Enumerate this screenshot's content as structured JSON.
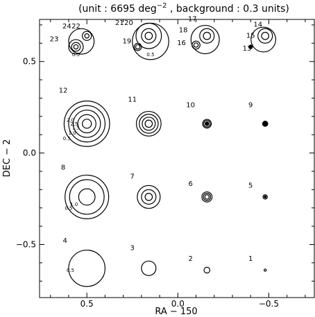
{
  "chart_data": {
    "type": "contour",
    "title": "(unit :  6695 deg⁻² , background : 0.3 units)",
    "title_parts": {
      "prefix": "(unit :  6695 deg",
      "superscript": "−2",
      "suffix": " , background : 0.3 units)"
    },
    "xlabel": "RA − 150",
    "ylabel": "DEC − 2",
    "xlim": [
      0.76,
      -0.75
    ],
    "ylim": [
      -0.79,
      0.73
    ],
    "x_ticks": [
      0.5,
      0.0,
      -0.5
    ],
    "x_tick_labels": [
      "0.5",
      "0.0",
      "−0.5"
    ],
    "y_ticks": [
      0.5,
      0.0,
      -0.5
    ],
    "y_tick_labels": [
      "0.5",
      "0.0",
      "−0.5"
    ],
    "grid": false,
    "legend": "none",
    "contour_sources": [
      {
        "id": "1",
        "x": -0.48,
        "y": -0.64,
        "radii": [
          0.006
        ]
      },
      {
        "id": "2",
        "x": -0.16,
        "y": -0.64,
        "radii": [
          0.016
        ]
      },
      {
        "id": "3",
        "x": 0.16,
        "y": -0.63,
        "radii": [
          0.04
        ]
      },
      {
        "id": "4",
        "x": 0.5,
        "y": -0.63,
        "radii": [
          0.1
        ]
      },
      {
        "id": "5",
        "x": -0.48,
        "y": -0.24,
        "radii": [
          0.012
        ]
      },
      {
        "id": "6",
        "x": -0.16,
        "y": -0.24,
        "radii": [
          0.012,
          0.02,
          0.028
        ]
      },
      {
        "id": "7",
        "x": 0.16,
        "y": -0.24,
        "radii": [
          0.02,
          0.04,
          0.063
        ]
      },
      {
        "id": "8",
        "x": 0.5,
        "y": -0.24,
        "radii": [
          0.045,
          0.095,
          0.12
        ]
      },
      {
        "id": "9",
        "x": -0.48,
        "y": 0.16,
        "radii": [
          0.014
        ]
      },
      {
        "id": "10",
        "x": -0.16,
        "y": 0.16,
        "radii": [
          0.01,
          0.018,
          0.024
        ]
      },
      {
        "id": "11",
        "x": 0.16,
        "y": 0.16,
        "radii": [
          0.02,
          0.036,
          0.052,
          0.068
        ]
      },
      {
        "id": "12",
        "x": 0.5,
        "y": 0.16,
        "radii": [
          0.025,
          0.05,
          0.075,
          0.1,
          0.125
        ]
      },
      {
        "id": "13",
        "x": -0.4,
        "y": 0.58,
        "radii": [
          0.008
        ]
      },
      {
        "id": "14",
        "x": -0.48,
        "y": 0.64,
        "radii": [
          0.02,
          0.04
        ]
      },
      {
        "id": "15",
        "x": -0.47,
        "y": 0.62,
        "radii": [
          0.068
        ]
      },
      {
        "id": "16",
        "x": -0.1,
        "y": 0.59,
        "radii": [
          0.012,
          0.022
        ]
      },
      {
        "id": "17",
        "x": -0.16,
        "y": 0.64,
        "radii": [
          0.02,
          0.04
        ]
      },
      {
        "id": "18",
        "x": -0.15,
        "y": 0.62,
        "radii": [
          0.078
        ]
      },
      {
        "id": "19",
        "x": 0.22,
        "y": 0.58,
        "radii": [
          0.012,
          0.02
        ]
      },
      {
        "id": "20",
        "x": 0.16,
        "y": 0.64,
        "radii": [
          0.02,
          0.04,
          0.07
        ]
      },
      {
        "id": "21",
        "x": 0.15,
        "y": 0.61,
        "radii": [
          0.1
        ]
      },
      {
        "id": "22",
        "x": 0.5,
        "y": 0.64,
        "radii": [
          0.012,
          0.025
        ]
      },
      {
        "id": "23",
        "x": 0.56,
        "y": 0.58,
        "radii": [
          0.012,
          0.024,
          0.04
        ]
      },
      {
        "id": "24",
        "x": 0.53,
        "y": 0.61,
        "radii": [
          0.07
        ]
      }
    ],
    "filled_sources": [
      {
        "id": "9",
        "x": -0.48,
        "y": 0.16,
        "r": 0.016
      },
      {
        "id": "10",
        "x": -0.16,
        "y": 0.16,
        "r": 0.012
      },
      {
        "id": "13",
        "x": -0.4,
        "y": 0.58,
        "r": 0.012
      },
      {
        "id": "5",
        "x": -0.48,
        "y": -0.24,
        "r": 0.008
      }
    ],
    "source_labels": [
      {
        "text": "1",
        "x": -0.4,
        "y": -0.59
      },
      {
        "text": "2",
        "x": -0.07,
        "y": -0.59
      },
      {
        "text": "3",
        "x": 0.25,
        "y": -0.53
      },
      {
        "text": "4",
        "x": 0.62,
        "y": -0.49
      },
      {
        "text": "5",
        "x": -0.4,
        "y": -0.19
      },
      {
        "text": "6",
        "x": -0.07,
        "y": -0.18
      },
      {
        "text": "7",
        "x": 0.25,
        "y": -0.14
      },
      {
        "text": "8",
        "x": 0.63,
        "y": -0.09
      },
      {
        "text": "9",
        "x": -0.4,
        "y": 0.25
      },
      {
        "text": "10",
        "x": -0.07,
        "y": 0.25
      },
      {
        "text": "11",
        "x": 0.25,
        "y": 0.28
      },
      {
        "text": "12",
        "x": 0.63,
        "y": 0.33
      },
      {
        "text": "13",
        "x": -0.38,
        "y": 0.56
      },
      {
        "text": "14",
        "x": -0.44,
        "y": 0.69
      },
      {
        "text": "15",
        "x": -0.4,
        "y": 0.63
      },
      {
        "text": "16",
        "x": -0.02,
        "y": 0.59
      },
      {
        "text": "17",
        "x": -0.08,
        "y": 0.72
      },
      {
        "text": "18",
        "x": -0.03,
        "y": 0.66
      },
      {
        "text": "19",
        "x": 0.28,
        "y": 0.6
      },
      {
        "text": "20",
        "x": 0.27,
        "y": 0.7
      },
      {
        "text": "21",
        "x": 0.32,
        "y": 0.7
      },
      {
        "text": "22",
        "x": 0.56,
        "y": 0.68
      },
      {
        "text": "23",
        "x": 0.68,
        "y": 0.61
      },
      {
        "text": "24",
        "x": 0.61,
        "y": 0.68
      }
    ],
    "contour_level_labels": [
      {
        "text": "0.5",
        "x": 0.59,
        "y": -0.65
      },
      {
        "text": "0.5",
        "x": 0.6,
        "y": -0.31
      },
      {
        "text": "1.0",
        "x": 0.57,
        "y": -0.29
      },
      {
        "text": "0.5",
        "x": 0.61,
        "y": 0.07
      },
      {
        "text": "1.0",
        "x": 0.58,
        "y": 0.1
      },
      {
        "text": "1.5",
        "x": 0.56,
        "y": 0.13
      },
      {
        "text": "2.0",
        "x": 0.59,
        "y": 0.17
      },
      {
        "text": "2.5",
        "x": 0.57,
        "y": 0.15
      },
      {
        "text": "0.5",
        "x": 0.56,
        "y": 0.53
      },
      {
        "text": "0.5",
        "x": 0.15,
        "y": 0.53
      }
    ]
  }
}
